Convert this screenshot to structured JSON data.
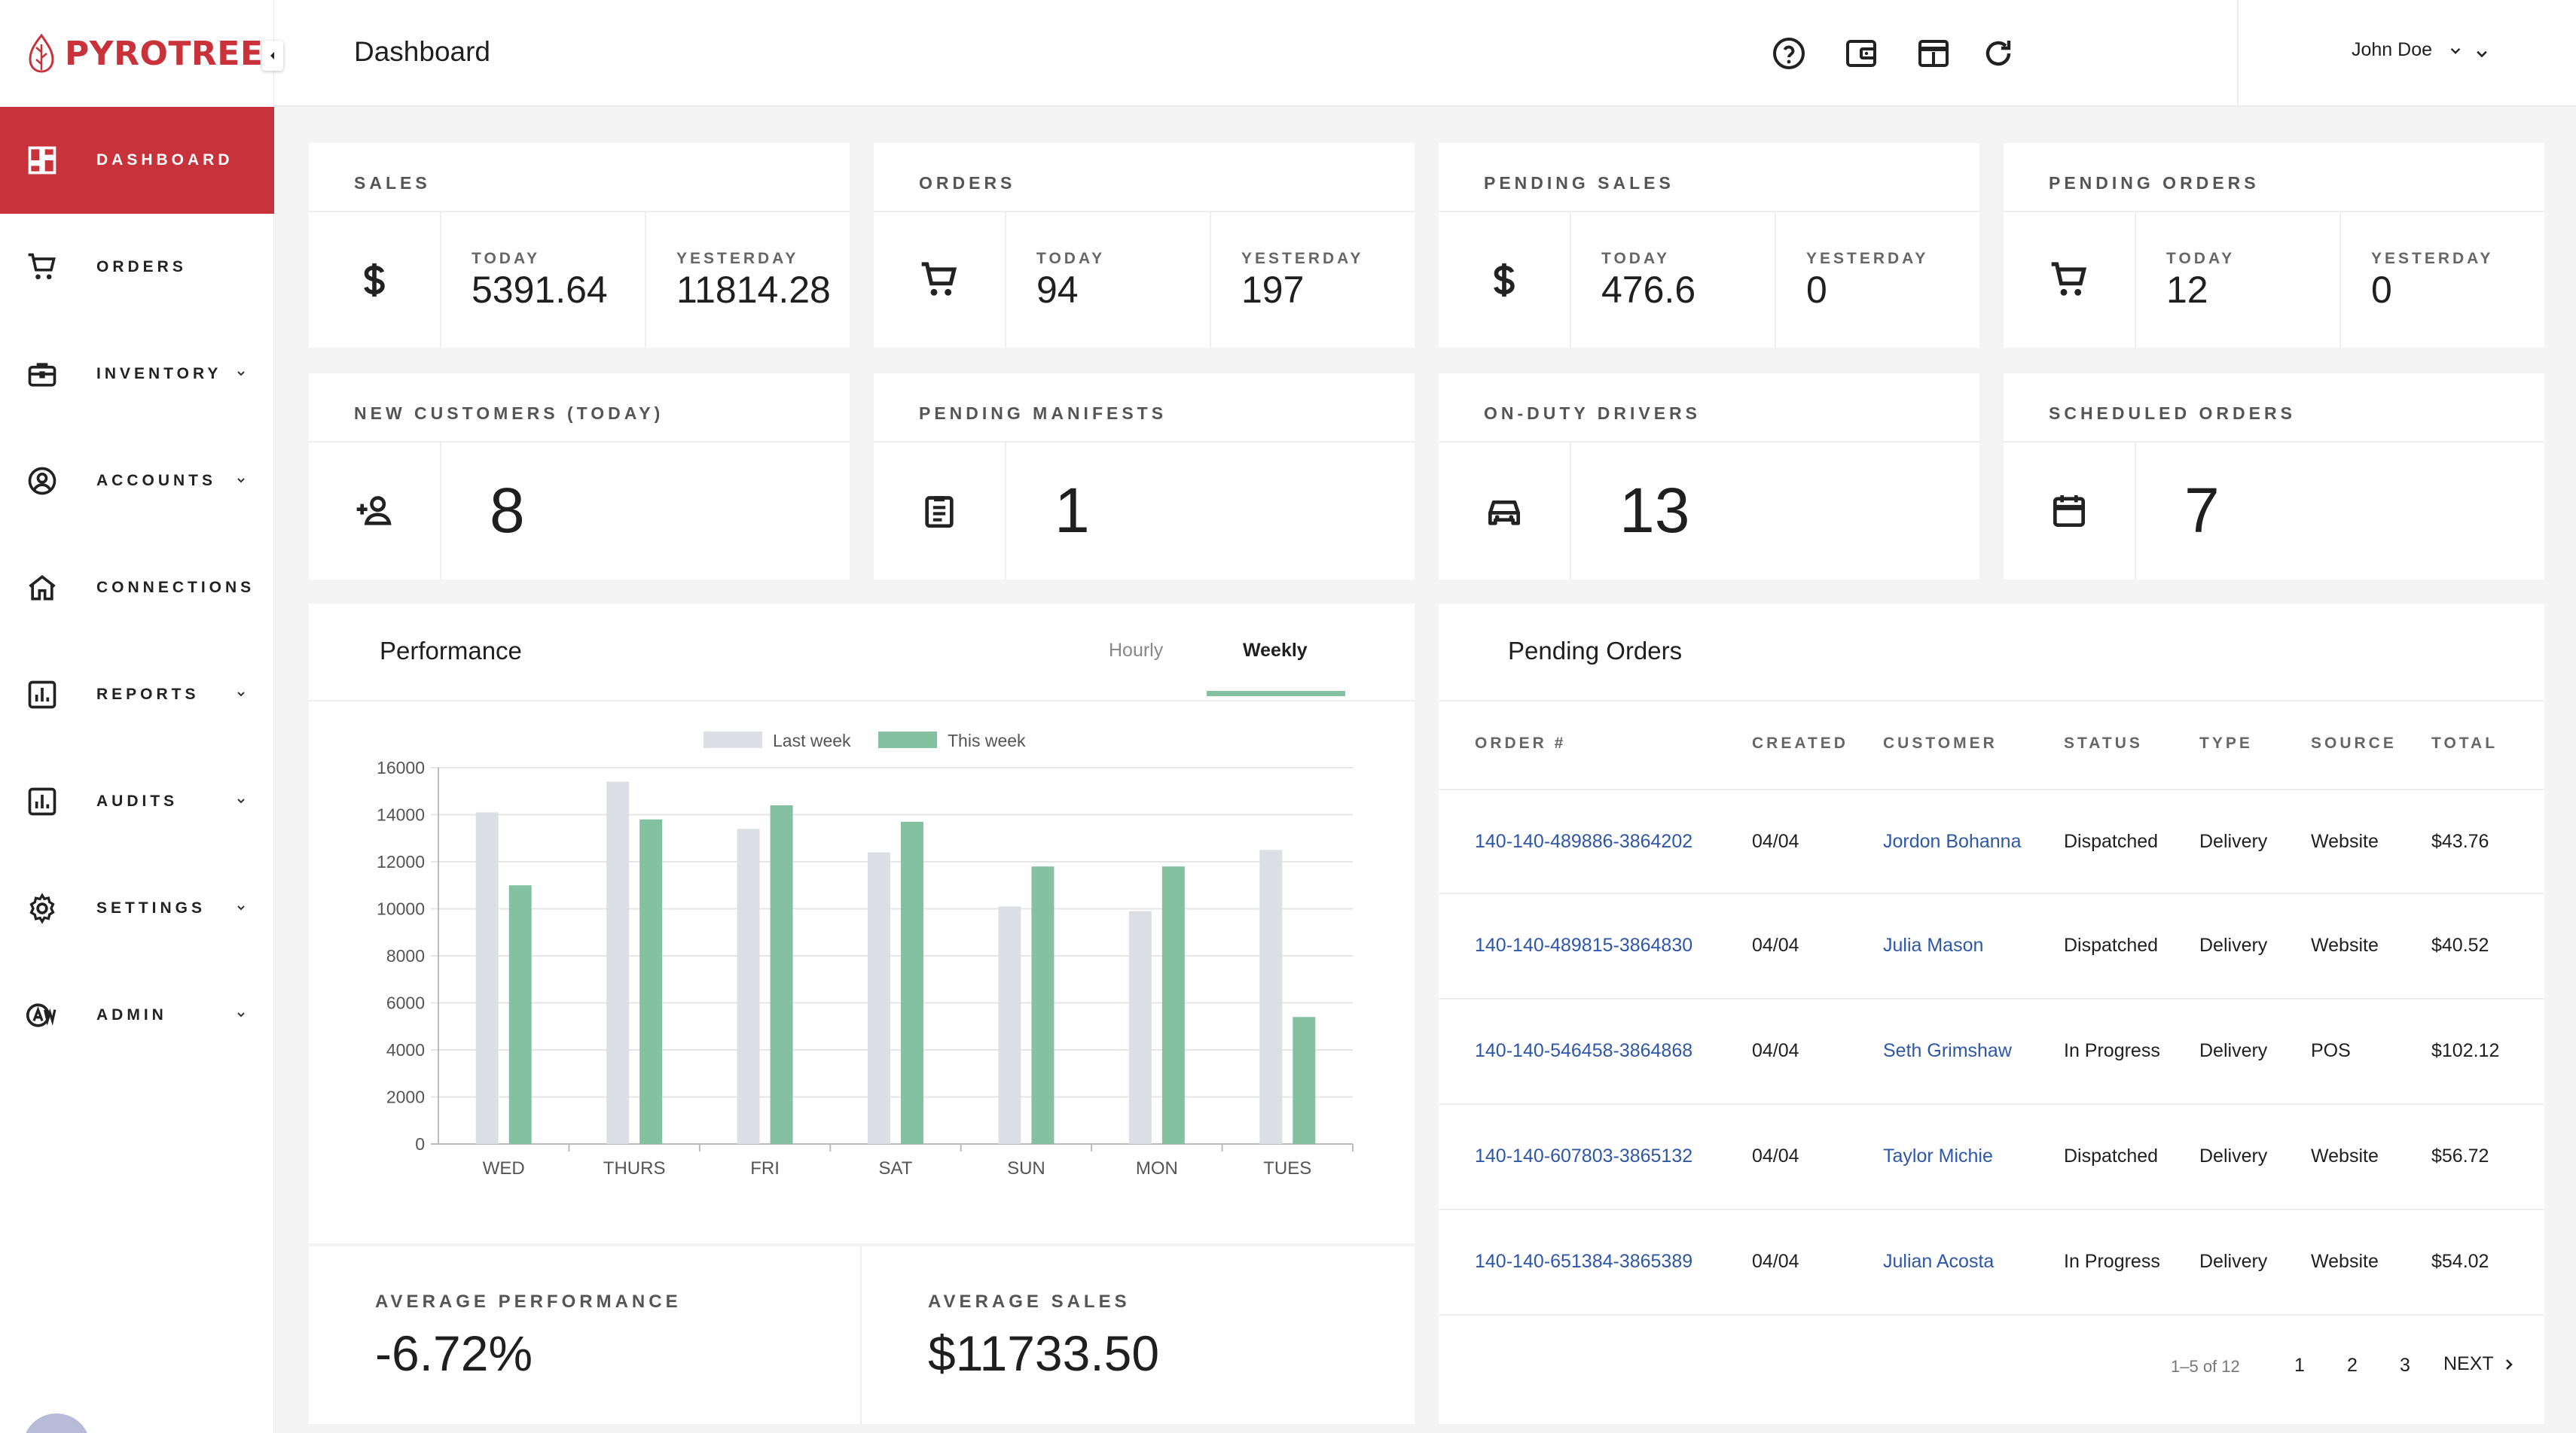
{
  "brand": {
    "name": "PYROTREE",
    "color": "#c8323a"
  },
  "header": {
    "title": "Dashboard",
    "user_name": "John Doe",
    "icons": [
      "help-icon",
      "wallet-icon",
      "browser-window-icon",
      "refresh-icon",
      "chevron-down-icon"
    ]
  },
  "sidebar": {
    "items": [
      {
        "label": "DASHBOARD",
        "icon": "dashboard-icon",
        "active": true,
        "expandable": false
      },
      {
        "label": "ORDERS",
        "icon": "cart-icon",
        "active": false,
        "expandable": false
      },
      {
        "label": "INVENTORY",
        "icon": "briefcase-icon",
        "active": false,
        "expandable": true
      },
      {
        "label": "ACCOUNTS",
        "icon": "account-circle-icon",
        "active": false,
        "expandable": true
      },
      {
        "label": "CONNECTIONS",
        "icon": "home-icon",
        "active": false,
        "expandable": false
      },
      {
        "label": "REPORTS",
        "icon": "bar-chart-icon",
        "active": false,
        "expandable": true
      },
      {
        "label": "AUDITS",
        "icon": "audit-chart-icon",
        "active": false,
        "expandable": true
      },
      {
        "label": "SETTINGS",
        "icon": "gear-icon",
        "active": false,
        "expandable": true
      },
      {
        "label": "ADMIN",
        "icon": "admin-aw-icon",
        "active": false,
        "expandable": true
      }
    ]
  },
  "stats": {
    "sales": {
      "title": "SALES",
      "today_label": "TODAY",
      "today": "5391.64",
      "yesterday_label": "YESTERDAY",
      "yesterday": "11814.28"
    },
    "orders": {
      "title": "ORDERS",
      "today_label": "TODAY",
      "today": "94",
      "yesterday_label": "YESTERDAY",
      "yesterday": "197"
    },
    "pending_sales": {
      "title": "PENDING SALES",
      "today_label": "TODAY",
      "today": "476.6",
      "yesterday_label": "YESTERDAY",
      "yesterday": "0"
    },
    "pending_orders": {
      "title": "PENDING ORDERS",
      "today_label": "TODAY",
      "today": "12",
      "yesterday_label": "YESTERDAY",
      "yesterday": "0"
    },
    "new_customers": {
      "title": "NEW CUSTOMERS (TODAY)",
      "value": "8"
    },
    "pending_manifests": {
      "title": "PENDING MANIFESTS",
      "value": "1"
    },
    "on_duty_drivers": {
      "title": "ON-DUTY DRIVERS",
      "value": "13"
    },
    "scheduled_orders": {
      "title": "SCHEDULED ORDERS",
      "value": "7"
    }
  },
  "performance": {
    "title": "Performance",
    "tabs": [
      {
        "label": "Hourly",
        "active": false
      },
      {
        "label": "Weekly",
        "active": true
      }
    ],
    "average_performance_label": "AVERAGE PERFORMANCE",
    "average_performance": "-6.72%",
    "average_sales_label": "AVERAGE SALES",
    "average_sales": "$11733.50"
  },
  "chart_data": {
    "type": "bar",
    "categories": [
      "WED",
      "THURS",
      "FRI",
      "SAT",
      "SUN",
      "MON",
      "TUES"
    ],
    "series": [
      {
        "name": "Last week",
        "color": "#dcdfe6",
        "values": [
          14100,
          15400,
          13400,
          12400,
          10100,
          9900,
          12500
        ]
      },
      {
        "name": "This week",
        "color": "#84c1a0",
        "values": [
          11000,
          13800,
          14400,
          13700,
          11800,
          11800,
          5400
        ]
      }
    ],
    "ylim": [
      0,
      16000
    ],
    "yticks": [
      0,
      2000,
      4000,
      6000,
      8000,
      10000,
      12000,
      14000,
      16000
    ],
    "legend": "top",
    "grid": true
  },
  "pending_orders": {
    "title": "Pending Orders",
    "columns": [
      "ORDER #",
      "CREATED",
      "CUSTOMER",
      "STATUS",
      "TYPE",
      "SOURCE",
      "TOTAL"
    ],
    "rows": [
      {
        "order": "140-140-489886-3864202",
        "created": "04/04",
        "customer": "Jordon Bohanna",
        "status": "Dispatched",
        "type": "Delivery",
        "source": "Website",
        "total": "$43.76"
      },
      {
        "order": "140-140-489815-3864830",
        "created": "04/04",
        "customer": "Julia Mason",
        "status": "Dispatched",
        "type": "Delivery",
        "source": "Website",
        "total": "$40.52"
      },
      {
        "order": "140-140-546458-3864868",
        "created": "04/04",
        "customer": "Seth Grimshaw",
        "status": "In Progress",
        "type": "Delivery",
        "source": "POS",
        "total": "$102.12"
      },
      {
        "order": "140-140-607803-3865132",
        "created": "04/04",
        "customer": "Taylor Michie",
        "status": "Dispatched",
        "type": "Delivery",
        "source": "Website",
        "total": "$56.72"
      },
      {
        "order": "140-140-651384-3865389",
        "created": "04/04",
        "customer": "Julian Acosta",
        "status": "In Progress",
        "type": "Delivery",
        "source": "Website",
        "total": "$54.02"
      }
    ],
    "pagination": {
      "range": "1–5 of 12",
      "pages": [
        "1",
        "2",
        "3"
      ],
      "next_label": "NEXT"
    }
  }
}
